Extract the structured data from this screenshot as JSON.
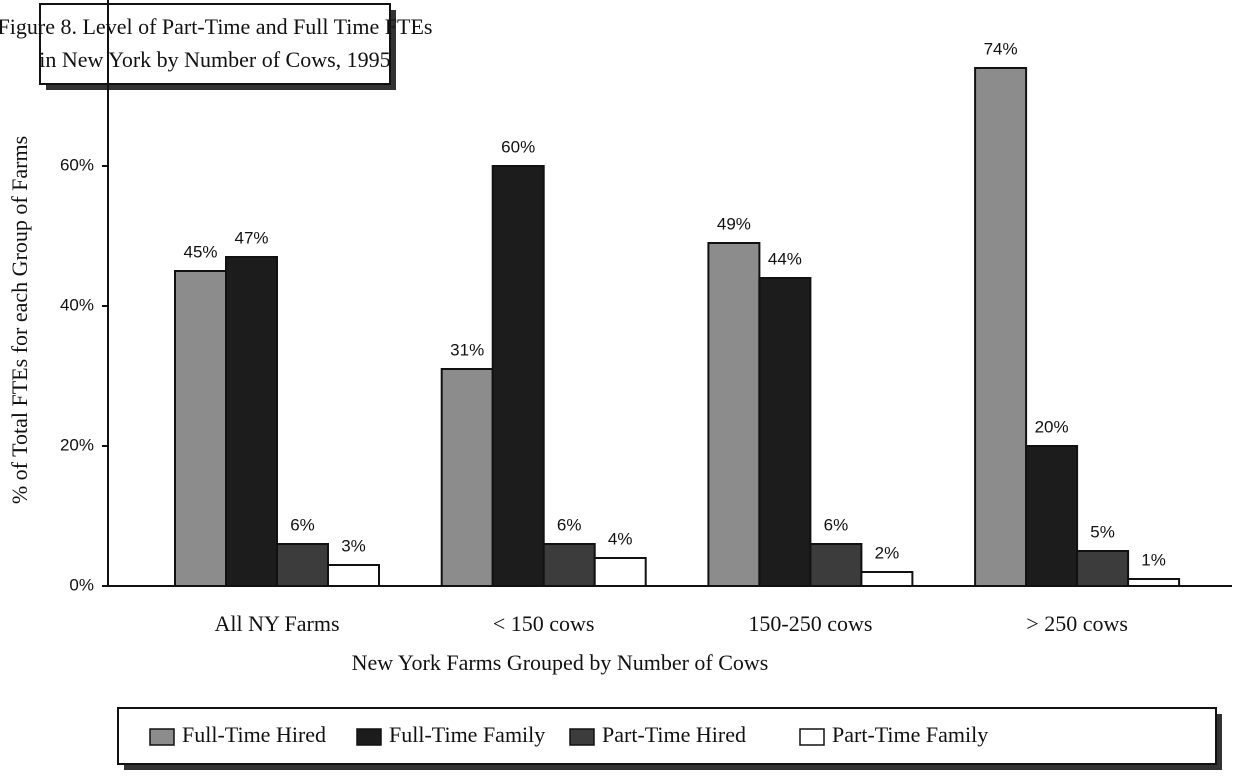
{
  "chart_data": {
    "type": "bar",
    "title": [
      "Figure 8. Level of Part-Time and Full Time FTEs",
      "in New York by Number of Cows, 1995"
    ],
    "x_label": "New York Farms Grouped by Number of Cows",
    "y_label": "% of Total FTEs for each Group of Farms",
    "categories": [
      "All NY Farms",
      "< 150 cows",
      "150-250 cows",
      "> 250 cows"
    ],
    "series": [
      {
        "name": "Full-Time Hired",
        "color": "#8c8c8c",
        "values": [
          45,
          31,
          49,
          74
        ],
        "value_labels": [
          "45%",
          "31%",
          "49%",
          "74%"
        ]
      },
      {
        "name": "Full-Time Family",
        "color": "#1c1c1c",
        "values": [
          47,
          60,
          44,
          20
        ],
        "value_labels": [
          "47%",
          "60%",
          "44%",
          "20%"
        ]
      },
      {
        "name": "Part-Time Hired",
        "color": "#3c3c3c",
        "values": [
          6,
          6,
          6,
          5
        ],
        "value_labels": [
          "6%",
          "6%",
          "6%",
          "5%"
        ]
      },
      {
        "name": "Part-Time Family",
        "color": "#ffffff",
        "values": [
          3,
          4,
          2,
          1
        ],
        "value_labels": [
          "3%",
          "4%",
          "2%",
          "1%"
        ]
      }
    ],
    "ylim": [
      0,
      80
    ],
    "yticks": [
      {
        "value": 0,
        "label": "0%"
      },
      {
        "value": 20,
        "label": "20%"
      },
      {
        "value": 40,
        "label": "40%"
      },
      {
        "value": 60,
        "label": "60%"
      }
    ],
    "legend": "bottom"
  }
}
